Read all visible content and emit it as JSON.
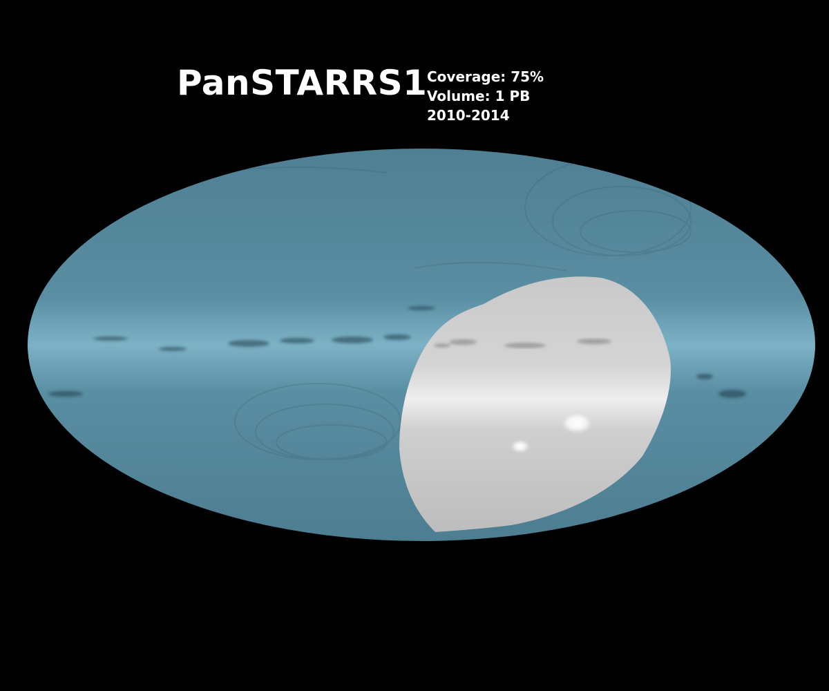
{
  "survey": {
    "name": "PanSTARRS1",
    "coverage": "Coverage: 75%",
    "volume": "Volume: 1 PB",
    "years": "2010-2014"
  },
  "map": {
    "projection": "Mollweide all-sky",
    "coverage_fraction": 0.75,
    "colors": {
      "background": "#000000",
      "covered_sky": "#5a8ea3",
      "galactic_plane": "#7fb3c8",
      "uncovered_region": "#c8c8c8"
    }
  }
}
